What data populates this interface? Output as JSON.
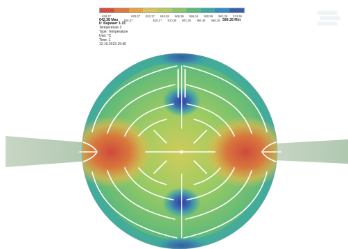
{
  "legend": {
    "colors": [
      "#d84a3a",
      "#e0763a",
      "#e8a040",
      "#d8c45a",
      "#b8c860",
      "#8cc46a",
      "#5eb87a",
      "#3ea8a0",
      "#3a88c0",
      "#3a5ea8"
    ],
    "ticks_top": [
      "638,37",
      "",
      "630,37",
      "622,37",
      "614,36",
      "606,36",
      "598,36",
      "590,36",
      "582,35",
      "574,35"
    ],
    "ticks_bottom": [
      "",
      "626,37",
      "",
      "618,37",
      "610,36",
      "602,36",
      "594,36",
      "586,35"
    ],
    "max_label": "642.38 Max",
    "min_label": "586.35 Min"
  },
  "info": {
    "line1": "К: Вариант 1.15",
    "line2": "Temperature 3",
    "line3": "Type: Temperature",
    "line4": "Unit: °C",
    "line5": "Time: 1",
    "line6": "12.10.2023 15:40"
  },
  "watermark_icon": "faded-logo-icon"
}
